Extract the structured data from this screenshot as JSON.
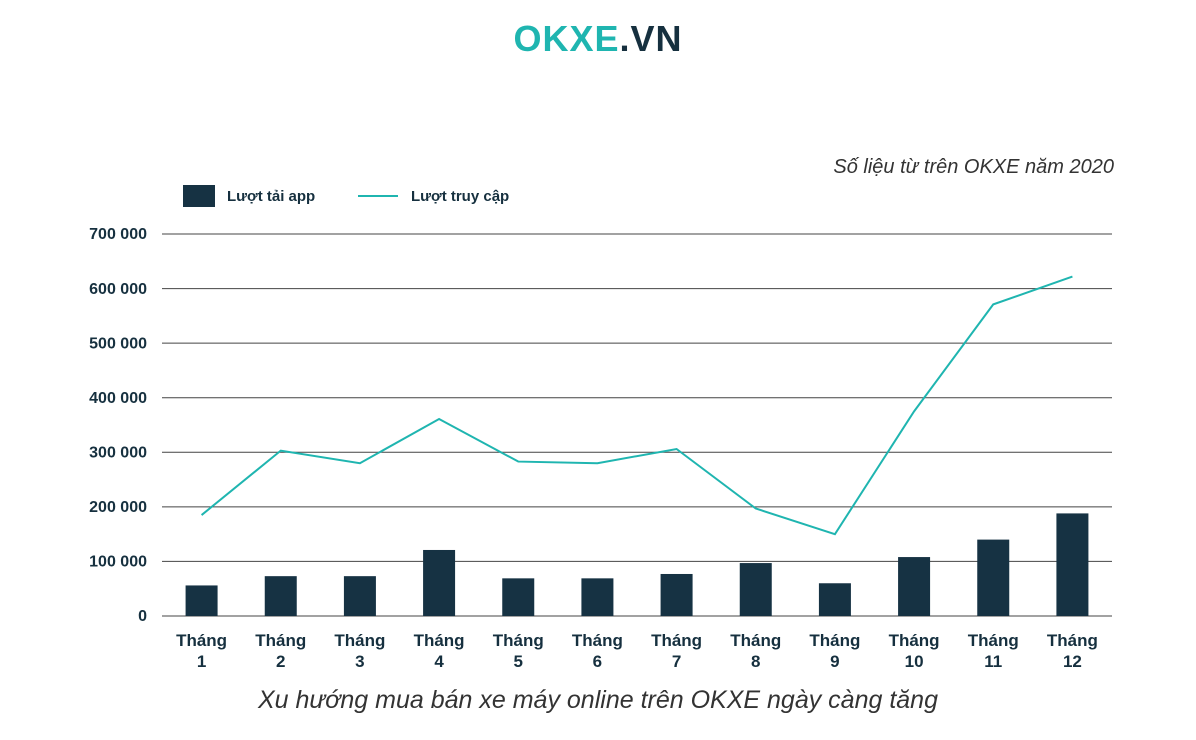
{
  "logo": {
    "brand": "OKXE",
    "tld": ".VN"
  },
  "source_note": "Số liệu từ trên OKXE năm 2020",
  "caption": "Xu hướng mua bán xe máy online trên OKXE ngày càng tăng",
  "colors": {
    "bar": "#163243",
    "line": "#1fb5b0",
    "grid": "#444444",
    "text": "#16303f"
  },
  "chart_data": {
    "type": "bar",
    "categories": [
      "Tháng 1",
      "Tháng 2",
      "Tháng 3",
      "Tháng 4",
      "Tháng 5",
      "Tháng 6",
      "Tháng 7",
      "Tháng 8",
      "Tháng 9",
      "Tháng 10",
      "Tháng 11",
      "Tháng 12"
    ],
    "series": [
      {
        "name": "Lượt tải app",
        "type": "bar",
        "values": [
          56000,
          73000,
          73000,
          121000,
          69000,
          69000,
          77000,
          97000,
          60000,
          108000,
          140000,
          188000
        ]
      },
      {
        "name": "Lượt truy cập",
        "type": "line",
        "values": [
          185000,
          303000,
          280000,
          361000,
          283000,
          280000,
          306000,
          197000,
          150000,
          375000,
          571000,
          622000
        ]
      }
    ],
    "yticks": [
      "700 000",
      "600 000",
      "500 000",
      "400 000",
      "300 000",
      "200 000",
      "100 000",
      "0"
    ],
    "ylim": [
      0,
      700000
    ],
    "grid": true,
    "legend": "top-left"
  }
}
